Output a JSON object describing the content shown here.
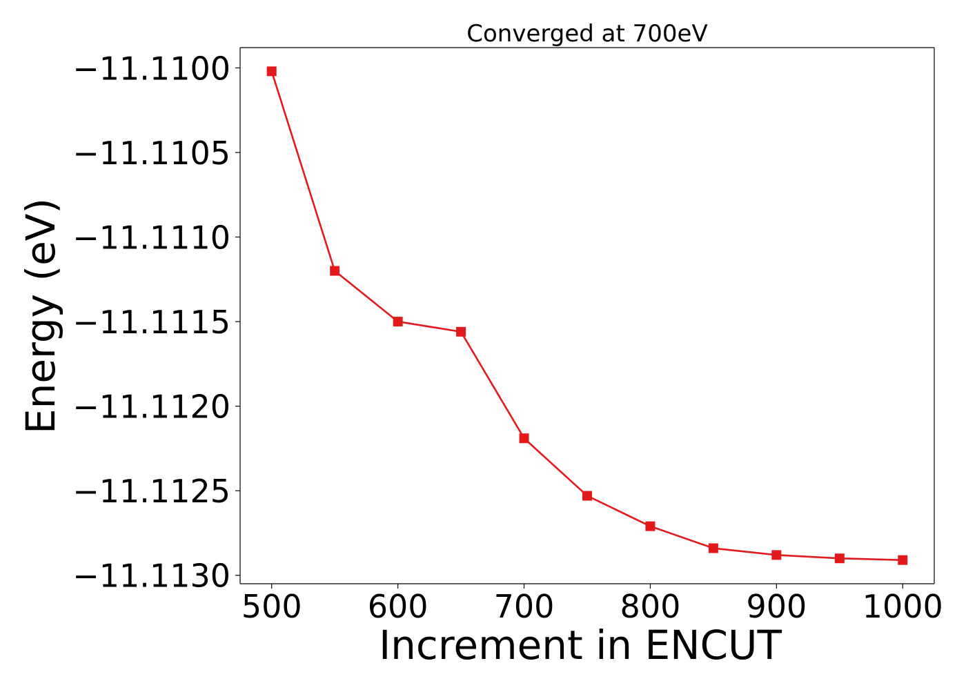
{
  "chart_data": {
    "type": "line",
    "title": "Converged at 700eV",
    "xlabel": "Increment in ENCUT",
    "ylabel": "Energy (eV)",
    "x": [
      500,
      550,
      600,
      650,
      700,
      750,
      800,
      850,
      900,
      950,
      1000
    ],
    "series": [
      {
        "values": [
          -11.11002,
          -11.1112,
          -11.1115,
          -11.11156,
          -11.11219,
          -11.11253,
          -11.11271,
          -11.11284,
          -11.11288,
          -11.1129,
          -11.11291
        ],
        "color": "#e31a1c",
        "marker": "square"
      }
    ],
    "xlim": [
      475,
      1025
    ],
    "ylim": [
      -11.11305,
      -11.10988
    ],
    "xticks": [
      500,
      600,
      700,
      800,
      900,
      1000
    ],
    "xtick_labels": [
      "500",
      "600",
      "700",
      "800",
      "900",
      "1000"
    ],
    "yticks": [
      -11.11,
      -11.1105,
      -11.111,
      -11.1115,
      -11.112,
      -11.1125,
      -11.113
    ],
    "ytick_labels": [
      "−11.1100",
      "−11.1105",
      "−11.1110",
      "−11.1115",
      "−11.1120",
      "−11.1125",
      "−11.1130"
    ],
    "grid": false,
    "legend": false
  }
}
